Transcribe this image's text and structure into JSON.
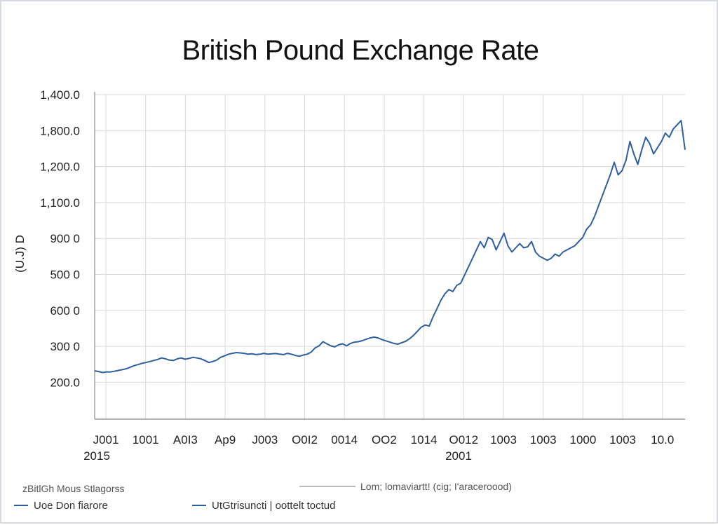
{
  "chart_data": {
    "type": "line",
    "title": "British Pound Exchange Rate",
    "ylabel": "(U.J) D",
    "xlabel": "",
    "y_ticks": [
      "200.0",
      "300 0",
      "600 0",
      "500 0",
      "900 0",
      "1,100.0",
      "1,200.0",
      "1,800.0",
      "1,400.0"
    ],
    "x_ticks": [
      "J001",
      "1001",
      "A0I3",
      "Ap9",
      "J003",
      "O0I2",
      "0014",
      "OO2",
      "1014",
      "O012",
      "1003",
      "1003",
      "1000",
      "1003",
      "10.0"
    ],
    "x_sublabels": [
      "2015",
      "2001"
    ],
    "grid": true,
    "legend_headers": [
      "zBitlGh Mous Stlagorss",
      "Lom; lomaviartt! (cig; I'araceroood)"
    ],
    "series": [
      {
        "name": "Uoe Don fiarore",
        "color": "#2e5f9e",
        "x": [
          0,
          1,
          2,
          3,
          4,
          5,
          6,
          7,
          8,
          9,
          10,
          11,
          12,
          13,
          14,
          15,
          16,
          17,
          18,
          19,
          20,
          21,
          22,
          23,
          24,
          25,
          26,
          27,
          28,
          29,
          30,
          31,
          32,
          33,
          34,
          35,
          36,
          37,
          38,
          39,
          40,
          41,
          42,
          43,
          44,
          45,
          46,
          47,
          48,
          49,
          50,
          51,
          52,
          53,
          54,
          55,
          56,
          57,
          58,
          59,
          60,
          61,
          62,
          63,
          64,
          65,
          66,
          67,
          68,
          69,
          70,
          71,
          72,
          73,
          74,
          75,
          76,
          77,
          78,
          79,
          80,
          81,
          82,
          83,
          84,
          85,
          86,
          87,
          88,
          89,
          90,
          91,
          92,
          93,
          94,
          95,
          96,
          97,
          98,
          99,
          100,
          101,
          102,
          103,
          104,
          105,
          106,
          107,
          108,
          109,
          110,
          111,
          112,
          113,
          114,
          115,
          116,
          117,
          118,
          119,
          120,
          121,
          122,
          123,
          124,
          125,
          126,
          127,
          128,
          129,
          130,
          131,
          132,
          133,
          134,
          135,
          136,
          137,
          138,
          139,
          140,
          141,
          142,
          143,
          144,
          145,
          146,
          147,
          148,
          149,
          150
        ],
        "values": [
          260,
          257,
          252,
          255,
          255,
          258,
          262,
          266,
          270,
          277,
          285,
          290,
          296,
          300,
          305,
          310,
          315,
          322,
          318,
          312,
          310,
          318,
          322,
          316,
          320,
          325,
          322,
          318,
          310,
          300,
          305,
          312,
          325,
          332,
          340,
          344,
          348,
          346,
          344,
          340,
          342,
          338,
          340,
          344,
          340,
          342,
          343,
          340,
          338,
          344,
          340,
          334,
          330,
          336,
          340,
          350,
          370,
          380,
          400,
          390,
          380,
          375,
          385,
          390,
          380,
          392,
          398,
          400,
          405,
          412,
          418,
          422,
          418,
          410,
          404,
          398,
          392,
          388,
          395,
          402,
          414,
          430,
          450,
          470,
          480,
          475,
          520,
          560,
          600,
          630,
          650,
          640,
          670,
          680,
          720,
          760,
          800,
          840,
          880,
          850,
          900,
          890,
          840,
          880,
          920,
          860,
          830,
          850,
          870,
          850,
          855,
          880,
          830,
          810,
          800,
          790,
          800,
          820,
          810,
          830,
          840,
          850,
          860,
          880,
          900,
          940,
          960,
          1000,
          1050,
          1100,
          1150,
          1200,
          1260,
          1200,
          1220,
          1270,
          1360,
          1300,
          1250,
          1320,
          1380,
          1350,
          1300,
          1330,
          1360,
          1400,
          1380,
          1420,
          1440,
          1460,
          1320
        ]
      },
      {
        "name": "UtGtrisuncti | oottelt toctud",
        "color": "#2e5f9e",
        "x": [],
        "values": []
      }
    ]
  }
}
